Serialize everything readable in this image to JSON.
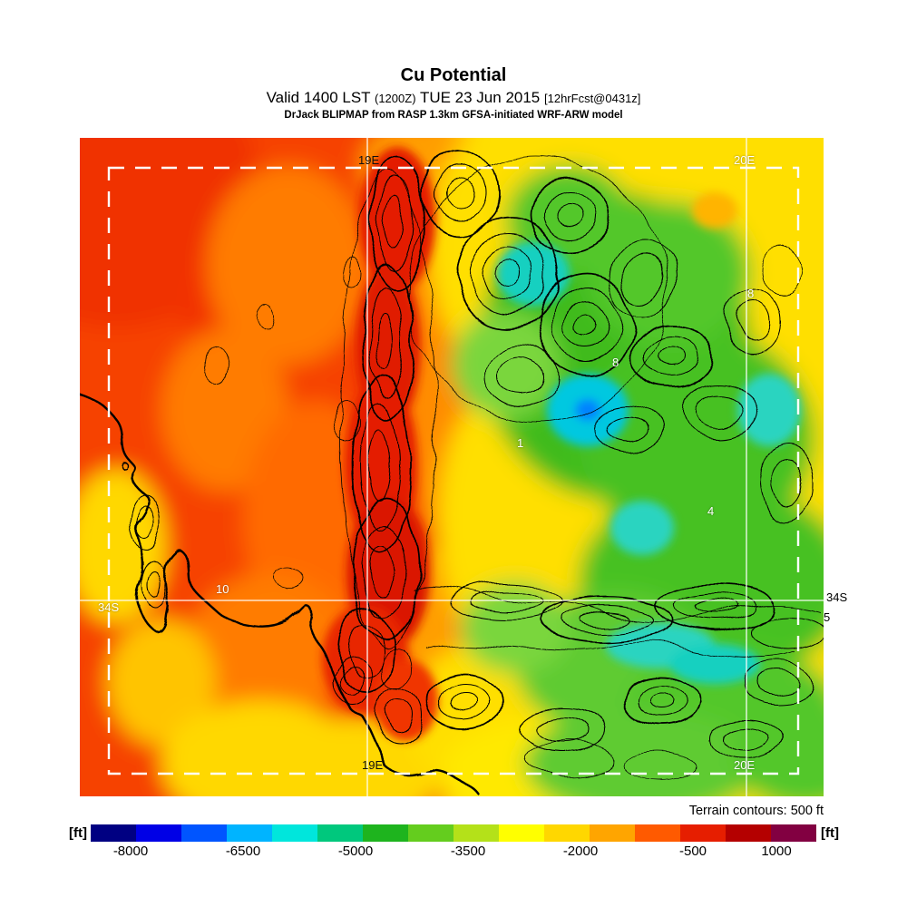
{
  "header": {
    "title": "Cu Potential",
    "valid": {
      "part1": "Valid 1400 LST",
      "part2": "(1200Z)",
      "part3": "TUE 23 Jun 2015",
      "part4": "[12hrFcst@0431z]"
    },
    "model": "DrJack BLIPMAP from RASP 1.3km GFSA-initiated WRF-ARW model"
  },
  "map": {
    "grid_labels": {
      "lon_19e_top": "19E",
      "lon_20e_top": "20E",
      "lon_19e_bottom": "19E",
      "lon_20e_bottom": "20E",
      "lat_34s_left": "34S",
      "lat_34s_right": "34S"
    },
    "value_labels": {
      "left_10": "10",
      "northeast_8": "8",
      "center_8": "8",
      "center_1": "1",
      "east_4": "4",
      "edge_5": "5"
    },
    "terrain_note": "Terrain contours: 500 ft"
  },
  "colorbar": {
    "unit_left": "[ft]",
    "unit_right": "[ft]",
    "ticks": [
      "-8000",
      "-6500",
      "-5000",
      "-3500",
      "-2000",
      "-500",
      "1000"
    ],
    "segments": [
      "#000082",
      "#0000e6",
      "#0055ff",
      "#00b4ff",
      "#00e6dc",
      "#00c87d",
      "#1eb41e",
      "#64cd1e",
      "#b4e119",
      "#ffff00",
      "#ffd700",
      "#ffa500",
      "#ff5a00",
      "#e61e00",
      "#b40000",
      "#820041"
    ]
  }
}
